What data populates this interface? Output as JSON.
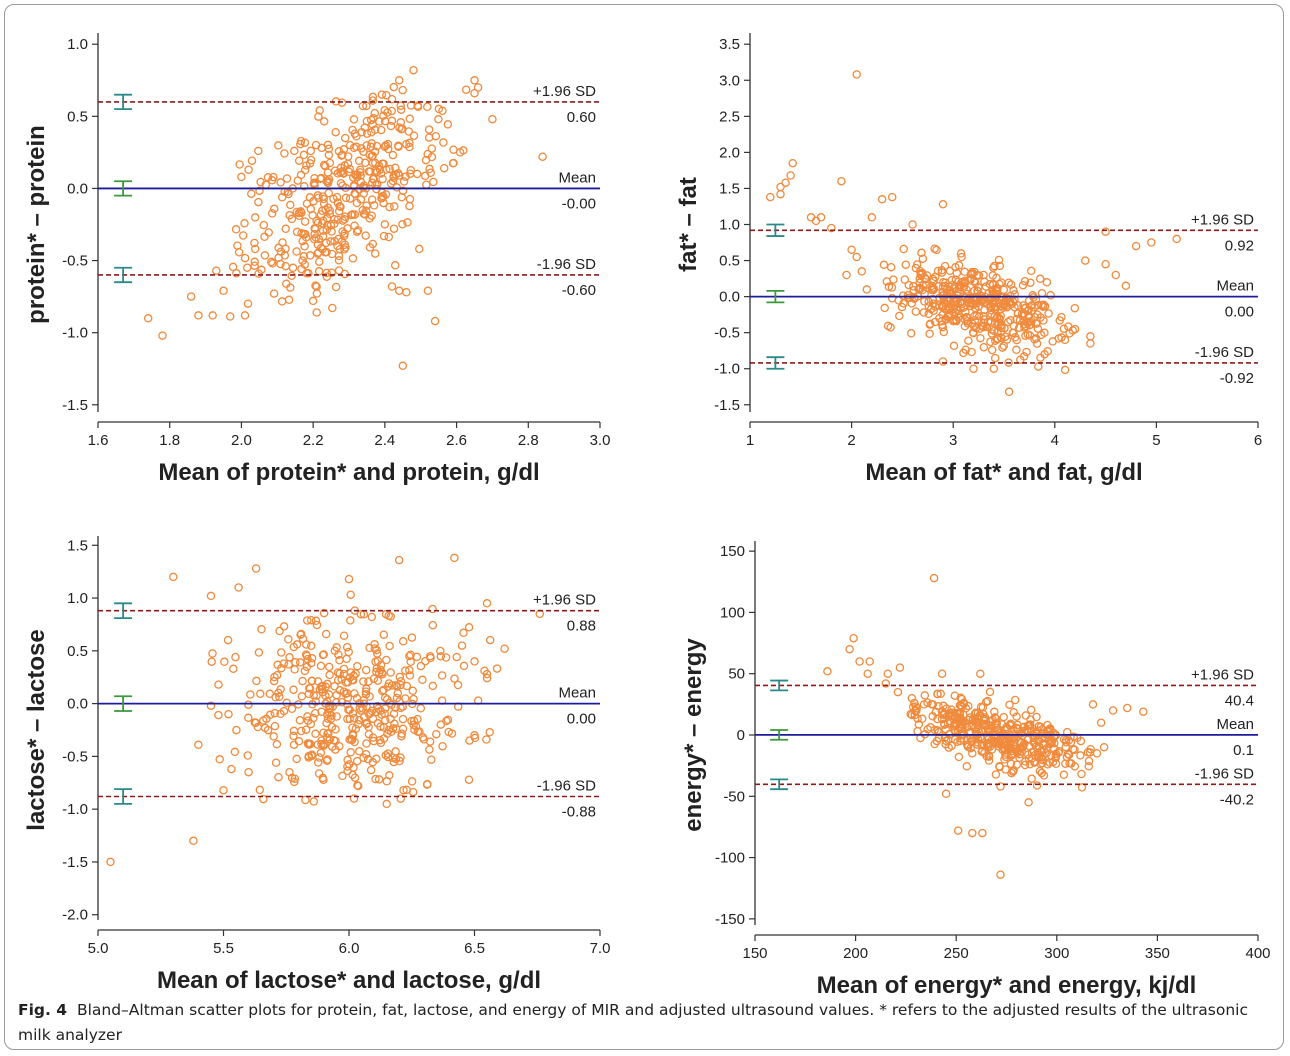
{
  "caption": {
    "label": "Fig. 4",
    "text": "Bland–Altman scatter plots for protein, fat, lactose, and energy of MIR and adjusted ultrasound values. * refers to the adjusted results of the ultrasonic milk analyzer"
  },
  "colors": {
    "points": "#f08a3c",
    "mean_line": "#1c1c9c",
    "limit_lines": "#8b1a1a",
    "ci_limits": "#2a8a8a",
    "ci_mean": "#3a9a3a"
  },
  "chart_data": [
    {
      "type": "scatter",
      "id": "protein",
      "xlabel": "Mean of protein* and protein, g/dl",
      "ylabel": "protein* – protein",
      "xlim": [
        1.6,
        3.0
      ],
      "ylim": [
        -1.55,
        1.05
      ],
      "xticks": [
        1.6,
        1.8,
        2.0,
        2.2,
        2.4,
        2.6,
        2.8,
        3.0
      ],
      "xtick_labels": [
        "1.6",
        "1.8",
        "2.0",
        "2.2",
        "2.4",
        "2.6",
        "2.8",
        "3.0"
      ],
      "yticks": [
        1.0,
        0.5,
        0.0,
        -0.5,
        -1.0,
        -1.5
      ],
      "ytick_labels": [
        "1.0",
        "0.5",
        "0.0",
        "-0.5",
        "-1.0",
        "-1.5"
      ],
      "mean": {
        "value": 0.0,
        "label": "Mean",
        "value_label": "-0.00"
      },
      "upper": {
        "value": 0.6,
        "label": "+1.96 SD",
        "value_label": "0.60"
      },
      "lower": {
        "value": -0.6,
        "label": "-1.96 SD",
        "value_label": "-0.60"
      },
      "ci_x": 1.67,
      "ci_half": 0.05,
      "cloud": {
        "n": 420,
        "xmean": 2.28,
        "xsd": 0.15,
        "ymean": 0.0,
        "ysd": 0.3,
        "slope": 1.45,
        "xmin": 1.95,
        "xmax": 2.65,
        "ymin": -0.95,
        "ymax": 0.8
      },
      "points": [
        [
          1.74,
          -0.9
        ],
        [
          1.78,
          -1.02
        ],
        [
          1.86,
          -0.75
        ],
        [
          1.88,
          -0.88
        ],
        [
          1.92,
          -0.88
        ],
        [
          1.93,
          -0.57
        ],
        [
          1.95,
          -0.71
        ],
        [
          2.01,
          -0.88
        ],
        [
          2.2,
          -0.78
        ],
        [
          2.21,
          -0.86
        ],
        [
          2.42,
          -0.68
        ],
        [
          2.44,
          -0.71
        ],
        [
          2.46,
          -0.72
        ],
        [
          2.52,
          -0.71
        ],
        [
          2.54,
          -0.92
        ],
        [
          2.45,
          -1.23
        ],
        [
          2.48,
          0.82
        ],
        [
          2.44,
          0.75
        ],
        [
          2.65,
          0.75
        ],
        [
          2.66,
          0.7
        ],
        [
          2.7,
          0.48
        ],
        [
          2.84,
          0.22
        ],
        [
          2.61,
          0.25
        ],
        [
          2.02,
          0.13
        ],
        [
          2.0,
          0.08
        ]
      ]
    },
    {
      "type": "scatter",
      "id": "fat",
      "xlabel": "Mean of fat* and fat, g/dl",
      "ylabel": "fat* – fat",
      "xlim": [
        1,
        6
      ],
      "ylim": [
        -1.6,
        3.6
      ],
      "xticks": [
        1,
        2,
        3,
        4,
        5,
        6
      ],
      "xtick_labels": [
        "1",
        "2",
        "3",
        "4",
        "5",
        "6"
      ],
      "yticks": [
        3.5,
        3.0,
        2.5,
        2.0,
        1.5,
        1.0,
        0.5,
        0.0,
        -0.5,
        -1.0,
        -1.5
      ],
      "ytick_labels": [
        "3.5",
        "3.0",
        "2.5",
        "2.0",
        "1.5",
        "1.0",
        "0.5",
        "0.0",
        "-0.5",
        "-1.0",
        "-1.5"
      ],
      "mean": {
        "value": 0.0,
        "label": "Mean",
        "value_label": "0.00"
      },
      "upper": {
        "value": 0.92,
        "label": "+1.96 SD",
        "value_label": "0.92"
      },
      "lower": {
        "value": -0.92,
        "label": "-1.96 SD",
        "value_label": "-0.92"
      },
      "ci_x": 1.25,
      "ci_half": 0.08,
      "cloud": {
        "n": 430,
        "xmean": 3.25,
        "xsd": 0.45,
        "ymean": -0.12,
        "ysd": 0.28,
        "slope": -0.35,
        "xmin": 2.3,
        "xmax": 4.2,
        "ymin": -1.02,
        "ymax": 0.9
      },
      "points": [
        [
          1.2,
          1.38
        ],
        [
          1.3,
          1.42
        ],
        [
          1.3,
          1.52
        ],
        [
          1.35,
          1.58
        ],
        [
          1.4,
          1.68
        ],
        [
          1.42,
          1.85
        ],
        [
          1.6,
          1.1
        ],
        [
          1.65,
          1.05
        ],
        [
          1.7,
          1.1
        ],
        [
          1.8,
          0.95
        ],
        [
          1.9,
          1.6
        ],
        [
          2.05,
          3.08
        ],
        [
          2.2,
          1.1
        ],
        [
          2.3,
          1.35
        ],
        [
          2.4,
          1.38
        ],
        [
          2.6,
          1.0
        ],
        [
          2.9,
          1.28
        ],
        [
          2.0,
          0.65
        ],
        [
          2.05,
          0.55
        ],
        [
          1.95,
          0.3
        ],
        [
          2.1,
          0.35
        ],
        [
          2.15,
          0.1
        ],
        [
          4.5,
          0.45
        ],
        [
          4.6,
          0.3
        ],
        [
          4.7,
          0.15
        ],
        [
          4.8,
          0.7
        ],
        [
          4.95,
          0.75
        ],
        [
          5.2,
          0.8
        ],
        [
          4.5,
          0.9
        ],
        [
          4.35,
          -0.55
        ],
        [
          4.35,
          -0.65
        ],
        [
          3.9,
          -0.8
        ],
        [
          3.55,
          -1.32
        ],
        [
          3.4,
          -1.0
        ],
        [
          3.2,
          -1.0
        ],
        [
          3.1,
          -0.78
        ],
        [
          2.9,
          -0.9
        ],
        [
          4.2,
          -0.45
        ],
        [
          4.1,
          -0.6
        ],
        [
          4.3,
          0.5
        ]
      ]
    },
    {
      "type": "scatter",
      "id": "lactose",
      "xlabel": "Mean of lactose* and lactose, g/dl",
      "ylabel": "lactose* – lactose",
      "xlim": [
        5.0,
        7.0
      ],
      "ylim": [
        -2.05,
        1.55
      ],
      "xticks": [
        5.0,
        5.5,
        6.0,
        6.5,
        7.0
      ],
      "xtick_labels": [
        "5.0",
        "5.5",
        "6.0",
        "6.5",
        "7.0"
      ],
      "yticks": [
        1.5,
        1.0,
        0.5,
        0.0,
        -0.5,
        -1.0,
        -1.5,
        -2.0
      ],
      "ytick_labels": [
        "1.5",
        "1.0",
        "0.5",
        "0.0",
        "-0.5",
        "-1.0",
        "-1.5",
        "-2.0"
      ],
      "mean": {
        "value": 0.0,
        "label": "Mean",
        "value_label": "0.00"
      },
      "upper": {
        "value": 0.88,
        "label": "+1.96 SD",
        "value_label": "0.88"
      },
      "lower": {
        "value": -0.88,
        "label": "-1.96 SD",
        "value_label": "-0.88"
      },
      "ci_x": 5.1,
      "ci_half": 0.07,
      "cloud": {
        "n": 430,
        "xmean": 6.0,
        "xsd": 0.22,
        "ymean": 0.0,
        "ysd": 0.42,
        "slope": 0.0,
        "xmin": 5.45,
        "xmax": 6.6,
        "ymin": -0.95,
        "ymax": 1.15
      },
      "points": [
        [
          5.05,
          -1.5
        ],
        [
          5.3,
          1.2
        ],
        [
          5.38,
          -1.3
        ],
        [
          5.4,
          -0.39
        ],
        [
          5.45,
          1.02
        ],
        [
          5.5,
          -0.82
        ],
        [
          5.56,
          1.1
        ],
        [
          5.63,
          1.28
        ],
        [
          6.0,
          1.18
        ],
        [
          6.2,
          1.36
        ],
        [
          6.42,
          1.38
        ],
        [
          6.55,
          0.95
        ],
        [
          6.62,
          0.52
        ],
        [
          6.76,
          0.85
        ],
        [
          6.5,
          0.4
        ],
        [
          6.45,
          0.55
        ],
        [
          6.55,
          0.28
        ],
        [
          6.48,
          -0.35
        ],
        [
          6.5,
          -0.3
        ],
        [
          5.52,
          -0.1
        ],
        [
          5.45,
          -0.02
        ],
        [
          5.6,
          -0.65
        ],
        [
          5.48,
          0.18
        ],
        [
          6.15,
          -0.95
        ],
        [
          6.02,
          -0.9
        ]
      ]
    },
    {
      "type": "scatter",
      "id": "energy",
      "xlabel": "Mean of energy* and energy, kj/dl",
      "ylabel": "energy* – energy",
      "xlim": [
        150,
        400
      ],
      "ylim": [
        -155,
        155
      ],
      "xticks": [
        150,
        200,
        250,
        300,
        350,
        400
      ],
      "xtick_labels": [
        "150",
        "200",
        "250",
        "300",
        "350",
        "400"
      ],
      "yticks": [
        150,
        100,
        50,
        0,
        -50,
        -100,
        -150
      ],
      "ytick_labels": [
        "150",
        "100",
        "50",
        "0",
        "-50",
        "-100",
        "-150"
      ],
      "mean": {
        "value": 0.1,
        "label": "Mean",
        "value_label": "0.1"
      },
      "upper": {
        "value": 40.4,
        "label": "+1.96 SD",
        "value_label": "40.4"
      },
      "lower": {
        "value": -40.2,
        "label": "-1.96 SD",
        "value_label": "-40.2"
      },
      "ci_x": 162,
      "ci_half": 4,
      "cloud": {
        "n": 420,
        "xmean": 272,
        "xsd": 22,
        "ymean": 0.0,
        "ysd": 12.5,
        "slope": -0.45,
        "xmin": 225,
        "xmax": 325,
        "ymin": -45,
        "ymax": 42
      },
      "points": [
        [
          186,
          52
        ],
        [
          197,
          70
        ],
        [
          199,
          79
        ],
        [
          202,
          60
        ],
        [
          207,
          60
        ],
        [
          206,
          50
        ],
        [
          216,
          50
        ],
        [
          222,
          55
        ],
        [
          239,
          128
        ],
        [
          243,
          50
        ],
        [
          262,
          50
        ],
        [
          221,
          35
        ],
        [
          228,
          30
        ],
        [
          234,
          25
        ],
        [
          215,
          42
        ],
        [
          245,
          -48
        ],
        [
          251,
          -78
        ],
        [
          258,
          -80
        ],
        [
          263,
          -80
        ],
        [
          272,
          -114
        ],
        [
          286,
          -55
        ],
        [
          272,
          -42
        ],
        [
          335,
          22
        ],
        [
          343,
          19
        ],
        [
          328,
          20
        ],
        [
          322,
          10
        ],
        [
          318,
          25
        ],
        [
          320,
          -15
        ],
        [
          312,
          -5
        ]
      ]
    }
  ]
}
